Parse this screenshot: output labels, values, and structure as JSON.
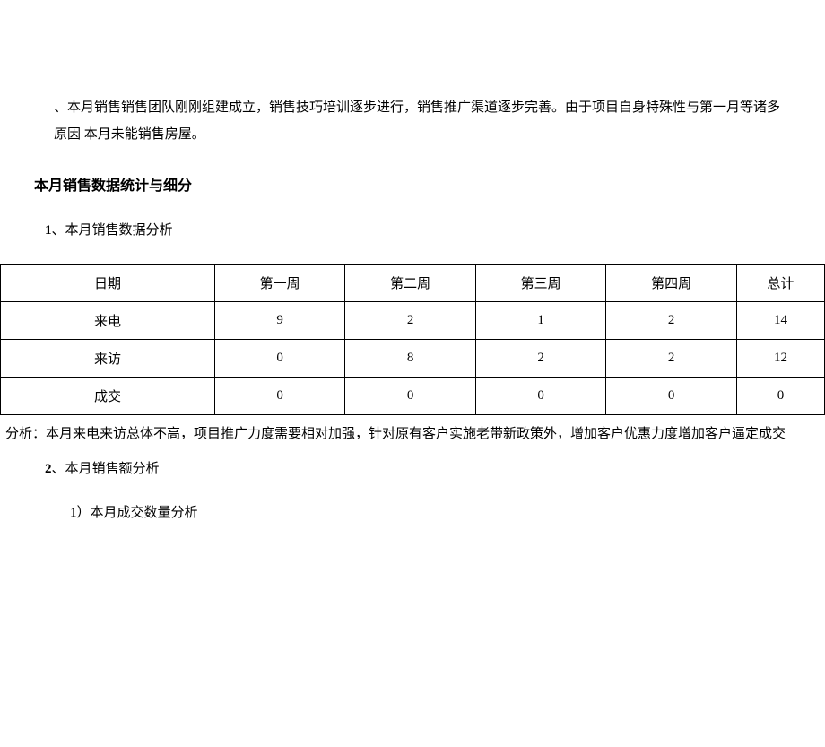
{
  "intro": {
    "text": "、本月销售销售团队刚刚组建成立，销售技巧培训逐步进行，销售推广渠道逐步完善。由于项目自身特殊性与第一月等诸多原因 本月未能销售房屋。"
  },
  "section": {
    "title": "本月销售数据统计与细分"
  },
  "item1": {
    "number": "1",
    "separator": "、",
    "label": "本月销售数据分析"
  },
  "table": {
    "columns": [
      "日期",
      "第一周",
      "第二周",
      "第三周",
      "第四周",
      "总计"
    ],
    "rows": [
      [
        "来电",
        "9",
        "2",
        "1",
        "2",
        "14"
      ],
      [
        "来访",
        "0",
        "8",
        "2",
        "2",
        "12"
      ],
      [
        "成交",
        "0",
        "0",
        "0",
        "0",
        "0"
      ]
    ]
  },
  "analysis": {
    "text": "分析：本月来电来访总体不高，项目推广力度需要相对加强，针对原有客户实施老带新政策外，增加客户优惠力度增加客户逼定成交"
  },
  "item2": {
    "number": "2",
    "separator": "、",
    "label": "本月销售额分析"
  },
  "subitem": {
    "text": "1）本月成交数量分析"
  }
}
